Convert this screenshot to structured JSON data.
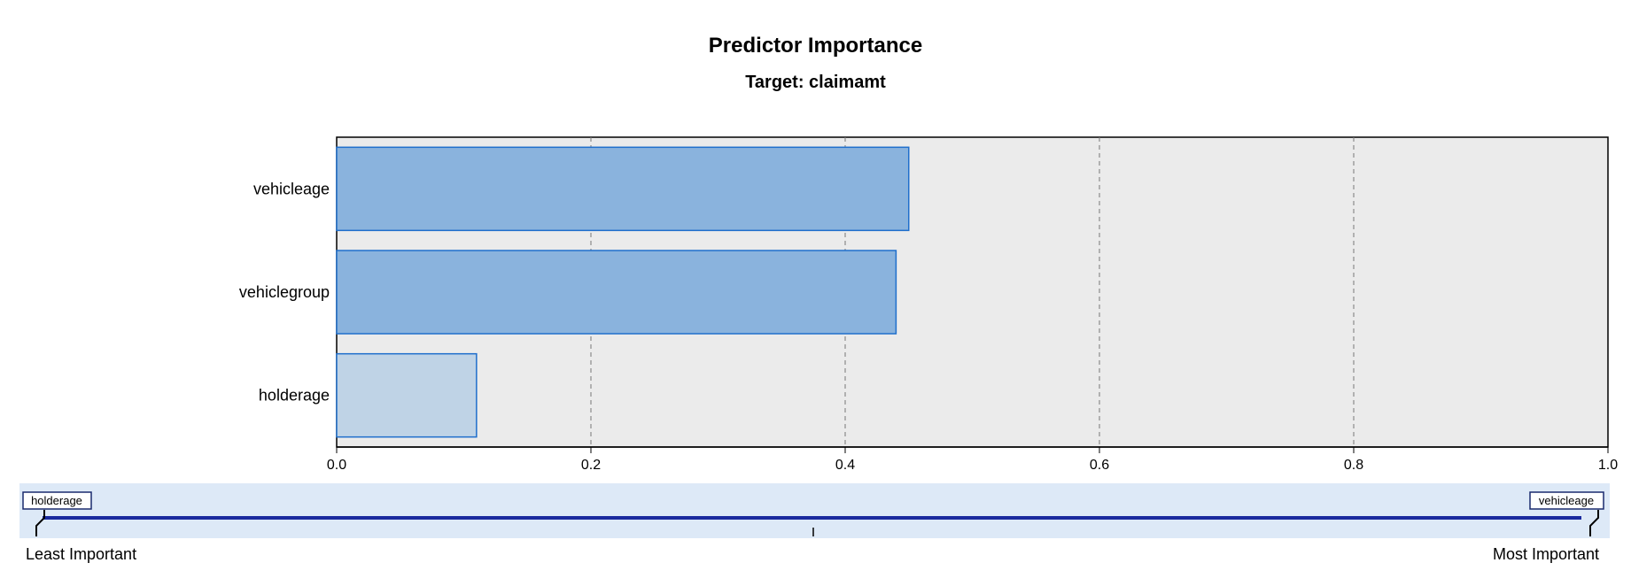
{
  "chart_data": {
    "type": "bar",
    "orientation": "horizontal",
    "title": "Predictor Importance",
    "subtitle": "Target: claimamt",
    "categories": [
      "vehicleage",
      "vehiclegroup",
      "holderage"
    ],
    "values": [
      0.45,
      0.44,
      0.11
    ],
    "bar_colors": [
      "#8ab3dd",
      "#8ab3dd",
      "#bfd3e6"
    ],
    "bar_border_color": "#1f6fcc",
    "plot_background": "#ebebeb",
    "xlim": [
      0.0,
      1.0
    ],
    "xticks": [
      0.0,
      0.2,
      0.4,
      0.6,
      0.8,
      1.0
    ],
    "xtick_labels": [
      "0.0",
      "0.2",
      "0.4",
      "0.6",
      "0.8",
      "1.0"
    ],
    "grid": "vertical dashed",
    "xlabel": "",
    "ylabel": ""
  },
  "importance_scale": {
    "least_label": "Least Important",
    "most_label": "Most Important",
    "least_predictor": "holderage",
    "most_predictor": "vehicleage",
    "band_color": "#dde9f7",
    "line_color": "#1a2a9e"
  }
}
